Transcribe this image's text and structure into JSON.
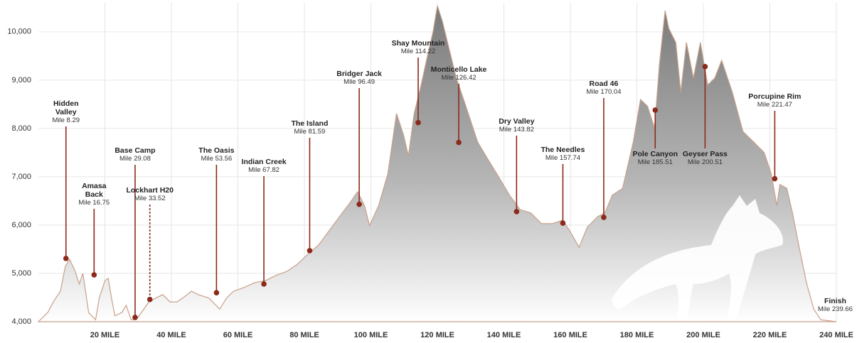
{
  "chart_data": {
    "type": "area",
    "color": "#8c8c8c",
    "line_color": "#c8a08a",
    "marker_color": "#8b2a1a",
    "grid": true,
    "xlim": [
      0,
      240
    ],
    "ylim": [
      4000,
      10600
    ],
    "xticks": [
      {
        "value": 20,
        "label": "20 MILE"
      },
      {
        "value": 40,
        "label": "40 MILE"
      },
      {
        "value": 60,
        "label": "60 MILE"
      },
      {
        "value": 80,
        "label": "80 MILE"
      },
      {
        "value": 100,
        "label": "100 MILE"
      },
      {
        "value": 120,
        "label": "120 MILE"
      },
      {
        "value": 140,
        "label": "140 MILE"
      },
      {
        "value": 160,
        "label": "160 MILE"
      },
      {
        "value": 180,
        "label": "180 MILE"
      },
      {
        "value": 200,
        "label": "200 MILE"
      },
      {
        "value": 220,
        "label": "220 MILE"
      },
      {
        "value": 240,
        "label": "240 MILE"
      }
    ],
    "yticks": [
      {
        "value": 4000,
        "label": "4,000"
      },
      {
        "value": 5000,
        "label": "5,000"
      },
      {
        "value": 6000,
        "label": "6,000"
      },
      {
        "value": 7000,
        "label": "7,000"
      },
      {
        "value": 8000,
        "label": "8,000"
      },
      {
        "value": 9000,
        "label": "9,000"
      },
      {
        "value": 10000,
        "label": "10,000"
      }
    ],
    "x": [
      0,
      2.8,
      4.5,
      6.6,
      8.1,
      9.4,
      10.9,
      12.3,
      13.4,
      14,
      15.1,
      17.2,
      18.3,
      20,
      21,
      22,
      23,
      25.1,
      26.4,
      27.9,
      29.4,
      31,
      33.2,
      35.3,
      37.4,
      39.6,
      41.7,
      43.8,
      46,
      48.1,
      51.3,
      54.5,
      56.6,
      58.7,
      61.9,
      65.1,
      68.3,
      71.5,
      74.7,
      77.9,
      81.1,
      84.3,
      87.4,
      90.6,
      93.8,
      96,
      98.1,
      99.6,
      102.3,
      105.1,
      107.7,
      109.8,
      111.3,
      113,
      115.1,
      117.2,
      118.7,
      120,
      121.5,
      123.6,
      125.7,
      127.9,
      130,
      132.1,
      135.3,
      138.5,
      141.7,
      144.9,
      148.1,
      151.3,
      154.5,
      157.7,
      159.8,
      162.6,
      165.1,
      168.3,
      170.4,
      172.6,
      175.7,
      178.9,
      181.1,
      183.2,
      185.3,
      186.8,
      188.5,
      189.6,
      191.7,
      193.2,
      194.9,
      197,
      199.1,
      201.3,
      203.4,
      205.5,
      208.7,
      211.9,
      215.1,
      218.3,
      220.4,
      222.1,
      223,
      225.1,
      226.8,
      228.9,
      231.1,
      233.2,
      235.3,
      240
    ],
    "values": [
      4000,
      4190,
      4410,
      4630,
      5150,
      5290,
      5070,
      4780,
      5000,
      4710,
      4190,
      4040,
      4490,
      4850,
      4900,
      4490,
      4120,
      4190,
      4340,
      4040,
      4040,
      4190,
      4410,
      4490,
      4560,
      4410,
      4410,
      4510,
      4630,
      4560,
      4490,
      4260,
      4490,
      4630,
      4710,
      4810,
      4850,
      4960,
      5040,
      5190,
      5400,
      5590,
      5880,
      6180,
      6470,
      6690,
      6400,
      5990,
      6400,
      7060,
      8310,
      7870,
      7430,
      8310,
      8900,
      9560,
      10000,
      10540,
      10220,
      9630,
      9040,
      8600,
      8160,
      7720,
      7350,
      6990,
      6620,
      6320,
      6250,
      6030,
      6030,
      6100,
      5880,
      5540,
      5960,
      6180,
      6250,
      6620,
      6760,
      7720,
      8600,
      8460,
      8010,
      9340,
      10440,
      10070,
      9780,
      8750,
      9780,
      9040,
      9780,
      8900,
      9040,
      9410,
      8750,
      7940,
      7720,
      7500,
      7060,
      6400,
      6840,
      6760,
      6250,
      5510,
      4780,
      4260,
      4040,
      4000
    ],
    "waypoints": [
      {
        "name": "Hidden Valley",
        "mile": 8.29,
        "mile_label": "Mile 8.29",
        "elevation": 5310
      },
      {
        "name": "Amasa Back",
        "mile": 16.75,
        "mile_label": "Mile 16.75",
        "elevation": 4970
      },
      {
        "name": "Base Camp",
        "mile": 29.08,
        "mile_label": "Mile 29.08",
        "elevation": 4090
      },
      {
        "name": "Lockhart H20",
        "mile": 33.52,
        "mile_label": "Mile 33.52",
        "elevation": 4460,
        "dashed": true
      },
      {
        "name": "The Oasis",
        "mile": 53.56,
        "mile_label": "Mile 53.56",
        "elevation": 4600
      },
      {
        "name": "Indian Creek",
        "mile": 67.82,
        "mile_label": "Mile 67.82",
        "elevation": 4780
      },
      {
        "name": "The Island",
        "mile": 81.59,
        "mile_label": "Mile 81.59",
        "elevation": 5470
      },
      {
        "name": "Bridger Jack",
        "mile": 96.49,
        "mile_label": "Mile 96.49",
        "elevation": 6430
      },
      {
        "name": "Shay Mountain",
        "mile": 114.22,
        "mile_label": "Mile 114.22",
        "elevation": 8120
      },
      {
        "name": "Monticello Lake",
        "mile": 126.42,
        "mile_label": "Mile 126.42",
        "elevation": 7710
      },
      {
        "name": "Dry Valley",
        "mile": 143.82,
        "mile_label": "Mile 143.82",
        "elevation": 6280
      },
      {
        "name": "The Needles",
        "mile": 157.74,
        "mile_label": "Mile 157.74",
        "elevation": 6040
      },
      {
        "name": "Road 46",
        "mile": 170.04,
        "mile_label": "Mile 170.04",
        "elevation": 6160
      },
      {
        "name": "Pole Canyon",
        "mile": 185.51,
        "mile_label": "Mile 185.51",
        "elevation": 8380
      },
      {
        "name": "Geyser Pass",
        "mile": 200.51,
        "mile_label": "Mile 200.51",
        "elevation": 9280
      },
      {
        "name": "Porcupine Rim",
        "mile": 221.47,
        "mile_label": "Mile 221.47",
        "elevation": 6960
      },
      {
        "name": "Finish",
        "mile": 239.66,
        "mile_label": "Mile 239.66"
      }
    ]
  }
}
